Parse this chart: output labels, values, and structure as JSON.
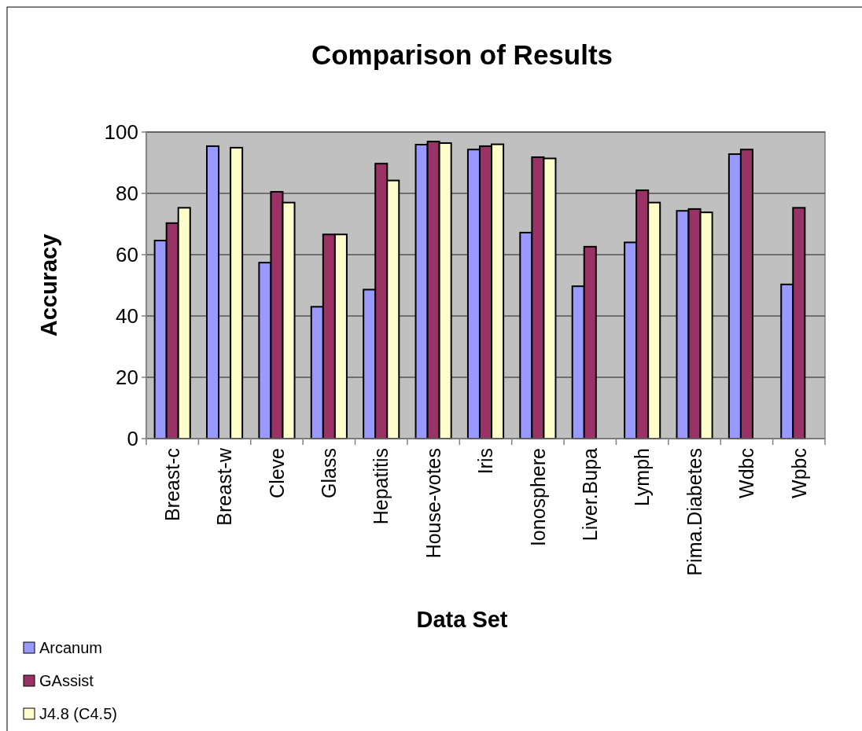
{
  "chart_data": {
    "type": "bar",
    "title": "Comparison of Results",
    "xlabel": "Data Set",
    "ylabel": "Accuracy",
    "categories": [
      "Breast-c",
      "Breast-w",
      "Cleve",
      "Glass",
      "Hepatitis",
      "House-votes",
      "Iris",
      "Ionosphere",
      "Liver.Bupa",
      "Lymph",
      "Pima.Diabetes",
      "Wdbc",
      "Wpbc"
    ],
    "series": [
      {
        "name": "Arcanum",
        "color": "#9999ff",
        "values": [
          64.6,
          95.4,
          57.4,
          43.0,
          48.6,
          95.9,
          94.3,
          67.2,
          49.7,
          64.0,
          74.3,
          92.8,
          50.3
        ]
      },
      {
        "name": "GAssist",
        "color": "#993366",
        "values": [
          70.3,
          null,
          80.5,
          66.6,
          89.7,
          96.9,
          95.4,
          91.8,
          62.6,
          81.0,
          74.9,
          94.3,
          75.3
        ]
      },
      {
        "name": "J4.8 (C4.5)",
        "color": "#ffffcc",
        "values": [
          75.3,
          94.9,
          77.0,
          66.6,
          84.2,
          96.4,
          96.0,
          91.4,
          null,
          77.0,
          73.8,
          null,
          null
        ]
      }
    ],
    "ylim": [
      0,
      100
    ],
    "yticks": [
      0,
      20,
      40,
      60,
      80,
      100
    ],
    "grid": "y",
    "legend": "bottom left"
  }
}
